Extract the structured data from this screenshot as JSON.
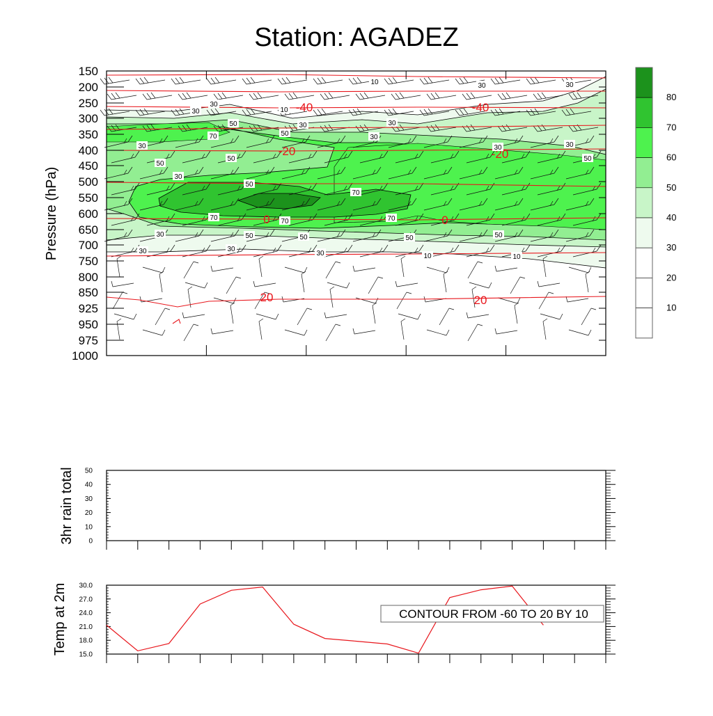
{
  "title": "Station: AGADEZ",
  "chart_data": [
    {
      "type": "contour",
      "ylabel": "Pressure (hPa)",
      "yticks": [
        "150",
        "200",
        "250",
        "300",
        "350",
        "400",
        "450",
        "500",
        "550",
        "600",
        "650",
        "700",
        "750",
        "800",
        "850",
        "925",
        "950",
        "975",
        "1000"
      ],
      "xticks_count": 6,
      "fill_levels": [
        10,
        20,
        30,
        40,
        50,
        60,
        70,
        80
      ],
      "fill_colors": [
        "#ffffff",
        "#ffffff",
        "#ffffff",
        "#eefaee",
        "#c8f5c8",
        "#92ee92",
        "#4ef24e",
        "#30c430",
        "#1c921c"
      ],
      "colorbar_labels": [
        "80",
        "70",
        "60",
        "50",
        "40",
        "30",
        "20",
        "10"
      ],
      "temperature_labels": [
        "-40",
        "-40",
        "-20",
        "-20",
        "0",
        "0",
        "20",
        "20"
      ],
      "humidity_labels": [
        "10",
        "30",
        "30",
        "10",
        "30",
        "30",
        "30",
        "30",
        "50",
        "70",
        "50",
        "30",
        "30",
        "50",
        "50",
        "30",
        "30",
        "50",
        "30",
        "50",
        "70",
        "70",
        "70",
        "70",
        "50",
        "50",
        "50",
        "50",
        "30",
        "30",
        "30",
        "30",
        "10",
        "10"
      ]
    },
    {
      "type": "line",
      "ylabel": "3hr rain total",
      "yticks": [
        "0",
        "10",
        "20",
        "30",
        "40",
        "50"
      ],
      "ylim": [
        0,
        50
      ],
      "xticks_count": 17,
      "series": []
    },
    {
      "type": "line",
      "ylabel": "Temp at 2m",
      "yticks": [
        "15.0",
        "18.0",
        "21.0",
        "24.0",
        "27.0",
        "30.0"
      ],
      "ylim": [
        15,
        30
      ],
      "xticks_count": 17,
      "series": [
        {
          "color": "#e8161c",
          "values": [
            21.3,
            15.7,
            17.3,
            25.9,
            28.9,
            29.6,
            21.5,
            18.4,
            17.8,
            17.2,
            15.2,
            27.3,
            29.0,
            29.8,
            21.3
          ]
        }
      ],
      "annotation": "CONTOUR FROM -60 TO 20 BY 10"
    }
  ]
}
